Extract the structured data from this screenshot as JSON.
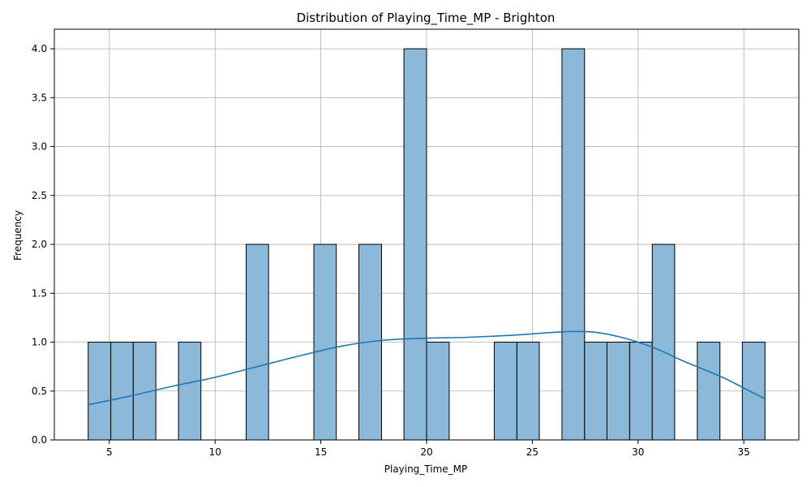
{
  "chart_data": {
    "type": "bar",
    "title": "Distribution of Playing_Time_MP - Brighton",
    "xlabel": "Playing_Time_MP",
    "ylabel": "Frequency",
    "xlim": [
      2.4,
      37.6
    ],
    "ylim": [
      0,
      4.2
    ],
    "xticks": [
      5,
      10,
      15,
      20,
      25,
      30,
      35
    ],
    "yticks": [
      "0.0",
      "0.5",
      "1.0",
      "1.5",
      "2.0",
      "2.5",
      "3.0",
      "3.5",
      "4.0"
    ],
    "grid": true,
    "bar_color": "#8cb8d9",
    "bar_edge_color": "#000000",
    "kde_color": "#1f77b4",
    "bins": [
      {
        "start": 4.0,
        "end": 5.07,
        "count": 1
      },
      {
        "start": 5.07,
        "end": 6.13,
        "count": 1
      },
      {
        "start": 6.13,
        "end": 7.2,
        "count": 1
      },
      {
        "start": 7.2,
        "end": 8.27,
        "count": 0
      },
      {
        "start": 8.27,
        "end": 9.33,
        "count": 1
      },
      {
        "start": 9.33,
        "end": 10.4,
        "count": 0
      },
      {
        "start": 10.4,
        "end": 11.47,
        "count": 0
      },
      {
        "start": 11.47,
        "end": 12.53,
        "count": 2
      },
      {
        "start": 12.53,
        "end": 13.6,
        "count": 0
      },
      {
        "start": 13.6,
        "end": 14.67,
        "count": 0
      },
      {
        "start": 14.67,
        "end": 15.73,
        "count": 2
      },
      {
        "start": 15.73,
        "end": 16.8,
        "count": 0
      },
      {
        "start": 16.8,
        "end": 17.87,
        "count": 2
      },
      {
        "start": 17.87,
        "end": 18.93,
        "count": 0
      },
      {
        "start": 18.93,
        "end": 20.0,
        "count": 4
      },
      {
        "start": 20.0,
        "end": 21.07,
        "count": 1
      },
      {
        "start": 21.07,
        "end": 22.13,
        "count": 0
      },
      {
        "start": 22.13,
        "end": 23.2,
        "count": 0
      },
      {
        "start": 23.2,
        "end": 24.27,
        "count": 1
      },
      {
        "start": 24.27,
        "end": 25.33,
        "count": 1
      },
      {
        "start": 25.33,
        "end": 26.4,
        "count": 0
      },
      {
        "start": 26.4,
        "end": 27.47,
        "count": 4
      },
      {
        "start": 27.47,
        "end": 28.53,
        "count": 1
      },
      {
        "start": 28.53,
        "end": 29.6,
        "count": 1
      },
      {
        "start": 29.6,
        "end": 30.67,
        "count": 1
      },
      {
        "start": 30.67,
        "end": 31.73,
        "count": 2
      },
      {
        "start": 31.73,
        "end": 32.8,
        "count": 0
      },
      {
        "start": 32.8,
        "end": 33.87,
        "count": 1
      },
      {
        "start": 33.87,
        "end": 34.93,
        "count": 0
      },
      {
        "start": 34.93,
        "end": 36.0,
        "count": 1
      }
    ],
    "kde": [
      [
        4,
        0.36
      ],
      [
        6,
        0.45
      ],
      [
        8,
        0.55
      ],
      [
        10,
        0.64
      ],
      [
        12,
        0.75
      ],
      [
        14,
        0.86
      ],
      [
        16,
        0.96
      ],
      [
        18,
        1.02
      ],
      [
        20,
        1.04
      ],
      [
        22,
        1.05
      ],
      [
        24,
        1.07
      ],
      [
        26,
        1.1
      ],
      [
        27,
        1.11
      ],
      [
        28,
        1.1
      ],
      [
        29,
        1.06
      ],
      [
        30,
        1.0
      ],
      [
        31,
        0.92
      ],
      [
        32,
        0.82
      ],
      [
        33,
        0.73
      ],
      [
        34,
        0.64
      ],
      [
        35,
        0.53
      ],
      [
        36,
        0.42
      ]
    ]
  }
}
